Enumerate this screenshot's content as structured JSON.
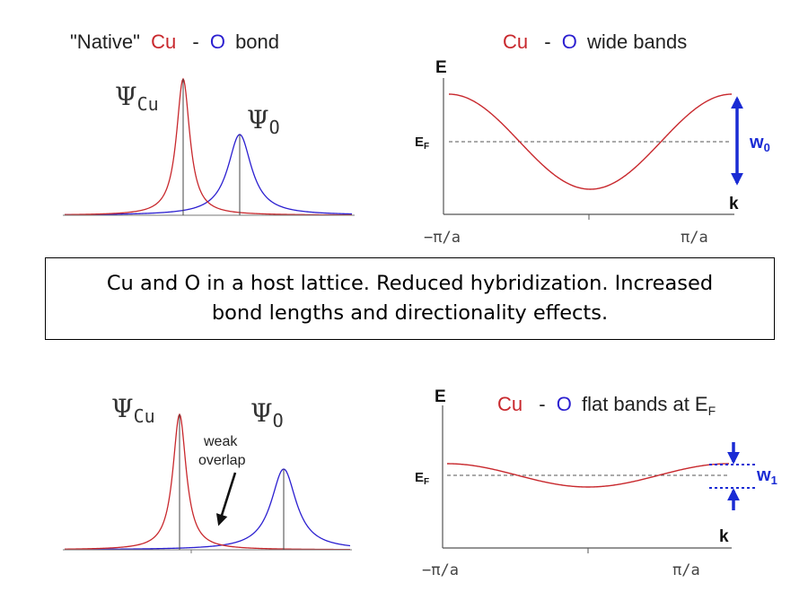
{
  "colors": {
    "cu": "#c8282d",
    "o": "#2b1fd0",
    "arrow": "#1a2bd4",
    "axis": "#555555",
    "text": "#222222"
  },
  "top_left": {
    "title_quote": "\"Native\"",
    "title_cu": "Cu",
    "title_sep": "-",
    "title_o": "O",
    "title_rest": "bond",
    "psi_cu": "Ψ",
    "psi_cu_sub": "Cu",
    "psi_o": "Ψ",
    "psi_o_sub": "O"
  },
  "top_right": {
    "title_cu": "Cu",
    "title_sep": "-",
    "title_o": "O",
    "title_rest": "wide bands",
    "y_axis": "E",
    "fermi": "E",
    "fermi_sub": "F",
    "x_axis": "k",
    "tick_left": "−π/a",
    "tick_right": "π/a",
    "width_label": "w",
    "width_sub": "0"
  },
  "box": {
    "line1": "Cu and O  in a host lattice.   Reduced hybridization.  Increased",
    "line2": "bond lengths and directionality effects."
  },
  "bottom_left": {
    "psi_cu": "Ψ",
    "psi_cu_sub": "Cu",
    "psi_o": "Ψ",
    "psi_o_sub": "O",
    "annotation_line1": "weak",
    "annotation_line2": "overlap"
  },
  "bottom_right": {
    "title_cu": "Cu",
    "title_sep": "-",
    "title_o": "O",
    "title_rest": "flat bands at E",
    "title_sub": "F",
    "y_axis": "E",
    "fermi": "E",
    "fermi_sub": "F",
    "x_axis": "k",
    "tick_left": "−π/a",
    "tick_right": "π/a",
    "width_label": "w",
    "width_sub": "1"
  }
}
